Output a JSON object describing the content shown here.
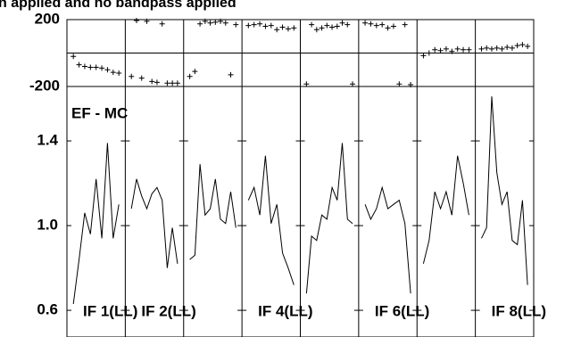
{
  "chart_data": {
    "type": "line",
    "title": "n applied and no bandpass applied",
    "annotation": "EF - MC",
    "phase_ylim": [
      -200,
      200
    ],
    "phase_yticks": [
      200,
      -200
    ],
    "ylim": [
      0.474,
      1.657
    ],
    "yticks": [
      {
        "value": 1.4,
        "label": "1.4"
      },
      {
        "value": 1,
        "label": "1.0"
      },
      {
        "value": 0.6,
        "label": "0.6"
      }
    ],
    "series": [
      {
        "label": "IF 1(LL)",
        "values": [
          0.63,
          0.84,
          1.06,
          0.96,
          1.22,
          0.94,
          1.39,
          0.94,
          1.1
        ],
        "phase": [
          -20,
          -70,
          -80,
          -85,
          -85,
          -90,
          -100,
          -115,
          -120
        ]
      },
      {
        "label": "IF 2(LL)",
        "values": [
          1.08,
          1.22,
          1.14,
          1.08,
          1.15,
          1.18,
          1.12,
          0.8,
          0.99,
          0.82
        ],
        "phase": [
          -140,
          195,
          -150,
          190,
          -170,
          -175,
          175,
          -180,
          -180,
          -180
        ]
      },
      {
        "values": [
          0.84,
          0.86,
          1.29,
          1.05,
          1.08,
          1.22,
          1.03,
          1.01,
          1.16,
          0.99
        ],
        "phase": [
          -140,
          -110,
          175,
          190,
          180,
          185,
          190,
          180,
          -130,
          170
        ]
      },
      {
        "label": "IF 4(LL)",
        "values": [
          1.12,
          1.18,
          1.05,
          1.33,
          1.01,
          1.1,
          0.87,
          0.8,
          0.72
        ],
        "phase": [
          165,
          170,
          175,
          160,
          165,
          140,
          155,
          145,
          150
        ]
      },
      {
        "values": [
          0.68,
          0.95,
          0.93,
          1.05,
          1.03,
          1.18,
          1.12,
          1.39,
          1.03,
          1.01
        ],
        "phase": [
          -185,
          170,
          140,
          150,
          165,
          155,
          160,
          180,
          170,
          -185
        ]
      },
      {
        "label": "IF 6(LL)",
        "values": [
          1.1,
          1.03,
          1.08,
          1.18,
          1.08,
          1.1,
          1.12,
          1.01,
          0.68
        ],
        "phase": [
          180,
          175,
          165,
          170,
          150,
          160,
          -185,
          170,
          -190
        ]
      },
      {
        "values": [
          0.82,
          0.93,
          1.16,
          1.08,
          1.16,
          1.05,
          1.33,
          1.2,
          1.05
        ],
        "phase": [
          -15,
          0,
          20,
          15,
          25,
          10,
          25,
          20,
          20
        ]
      },
      {
        "label": "IF 8(LL)",
        "values": [
          0.94,
          0.99,
          1.61,
          1.25,
          1.1,
          1.16,
          0.93,
          0.91,
          1.12,
          0.72
        ],
        "phase": [
          25,
          30,
          25,
          30,
          25,
          35,
          30,
          45,
          50,
          40
        ]
      }
    ]
  }
}
